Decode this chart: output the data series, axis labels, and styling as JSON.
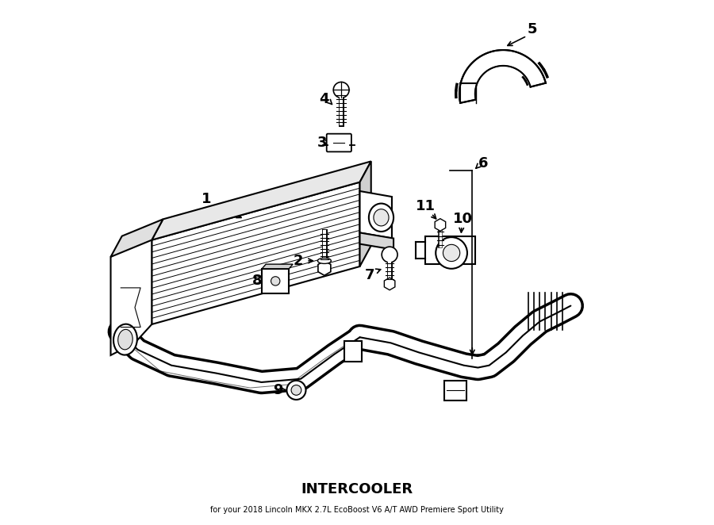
{
  "title": "INTERCOOLER",
  "subtitle": "for your 2018 Lincoln MKX 2.7L EcoBoost V6 A/T AWD Premiere Sport Utility",
  "bg_color": "#ffffff",
  "line_color": "#000000",
  "label_color": "#000000",
  "font_size_title": 13,
  "font_size_label": 13
}
